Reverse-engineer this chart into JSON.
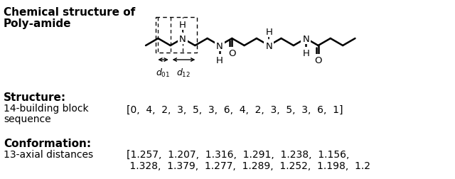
{
  "title_line1": "Chemical structure of",
  "title_line2": "Poly-amide",
  "structure_label": "Structure:",
  "structure_desc_line1": "14-building block",
  "structure_desc_line2": "sequence",
  "structure_seq_line1": "[0,  4,  2,  3,  5,  3,  6,  4,  2,  3,  5,  3,  6,  1]",
  "conformation_label": "Conformation:",
  "conformation_desc": "13-axial distances",
  "conformation_seq_line1": "[1.257,  1.207,  1.316,  1.291,  1.238,  1.156,",
  "conformation_seq_line2": " 1.328,  1.379,  1.277,  1.289,  1.252,  1.198,  1.2",
  "bg_color": "#ffffff",
  "text_color": "#000000",
  "title_bold_size": 11,
  "text_size": 10,
  "mono_size": 10,
  "chem_lw": 1.8
}
